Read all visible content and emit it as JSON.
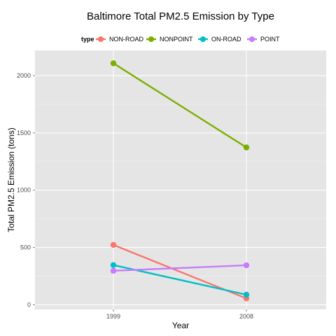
{
  "chart_data": {
    "type": "line",
    "title": "Baltimore Total PM2.5 Emission by Type",
    "xlabel": "Year",
    "ylabel": "Total PM2.5 Emission (tons)",
    "categories": [
      "1999",
      "2008"
    ],
    "ylim": [
      -40,
      2220
    ],
    "yticks": [
      0,
      500,
      1000,
      1500,
      2000
    ],
    "grid": true,
    "legend": {
      "title": "type",
      "position": "top"
    },
    "series": [
      {
        "name": "NON-ROAD",
        "color": "#f8766d",
        "values": [
          522.9,
          55.8
        ]
      },
      {
        "name": "NONPOINT",
        "color": "#7cae00",
        "values": [
          2107.6,
          1373.2
        ]
      },
      {
        "name": "ON-ROAD",
        "color": "#00bfc4",
        "values": [
          346.8,
          88.3
        ]
      },
      {
        "name": "POINT",
        "color": "#c77cff",
        "values": [
          296.8,
          344.98
        ]
      }
    ]
  }
}
